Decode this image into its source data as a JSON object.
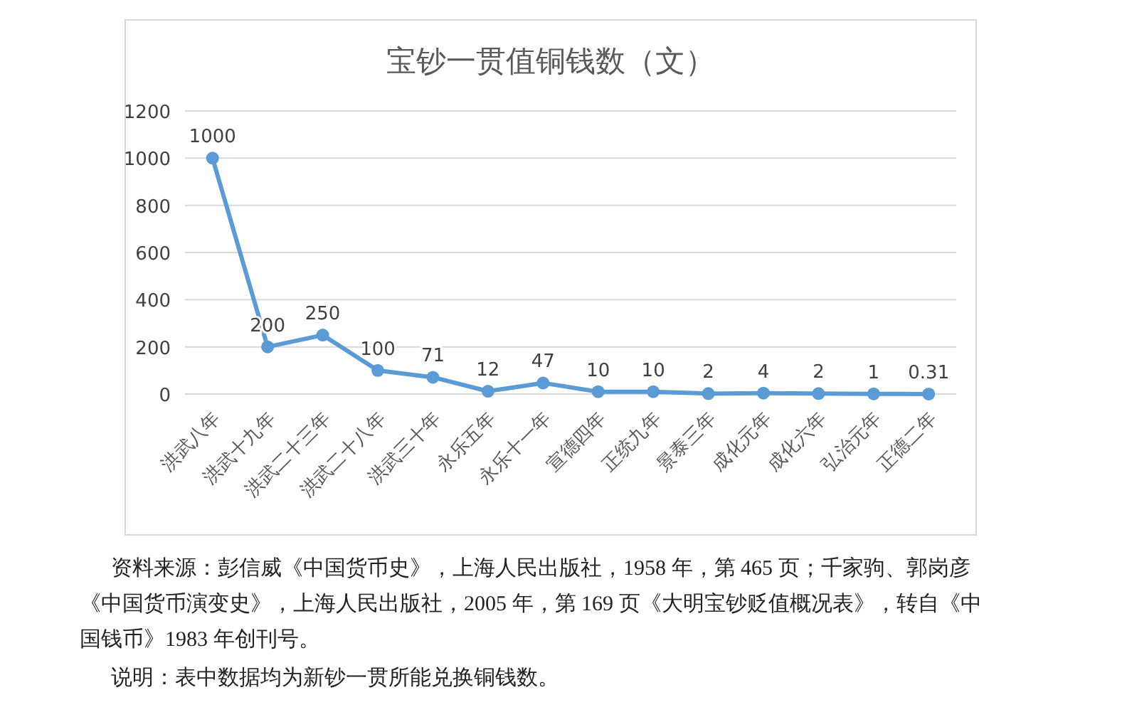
{
  "chart_data": {
    "type": "line",
    "title": "宝钞一贯值铜钱数（文）",
    "categories": [
      "洪武八年",
      "洪武十九年",
      "洪武二十三年",
      "洪武二十八年",
      "洪武三十年",
      "永乐五年",
      "永乐十一年",
      "宣德四年",
      "正统九年",
      "景泰三年",
      "成化元年",
      "成化六年",
      "弘治元年",
      "正德二年"
    ],
    "values": [
      1000,
      200,
      250,
      100,
      71,
      12,
      47,
      10,
      10,
      2,
      4,
      2,
      1,
      0.31
    ],
    "color": "#5b9bd5",
    "ylim": [
      0,
      1200
    ],
    "yticks": [
      0,
      200,
      400,
      600,
      800,
      1000,
      1200
    ],
    "grid": "y",
    "marker": "circle",
    "data_labels": true,
    "annotations": [
      "资料来源：彭信威《中国货币史》，上海人民出版社，1958 年，第 465 页；千家驹、郭岗彦《中国货币演变史》，上海人民出版社，2005 年，第 169 页《大明宝钞贬值概况表》，转自《中国钱币》1983 年创刊号。",
      "说明：表中数据均为新钞一贯所能兑换铜钱数。"
    ]
  }
}
